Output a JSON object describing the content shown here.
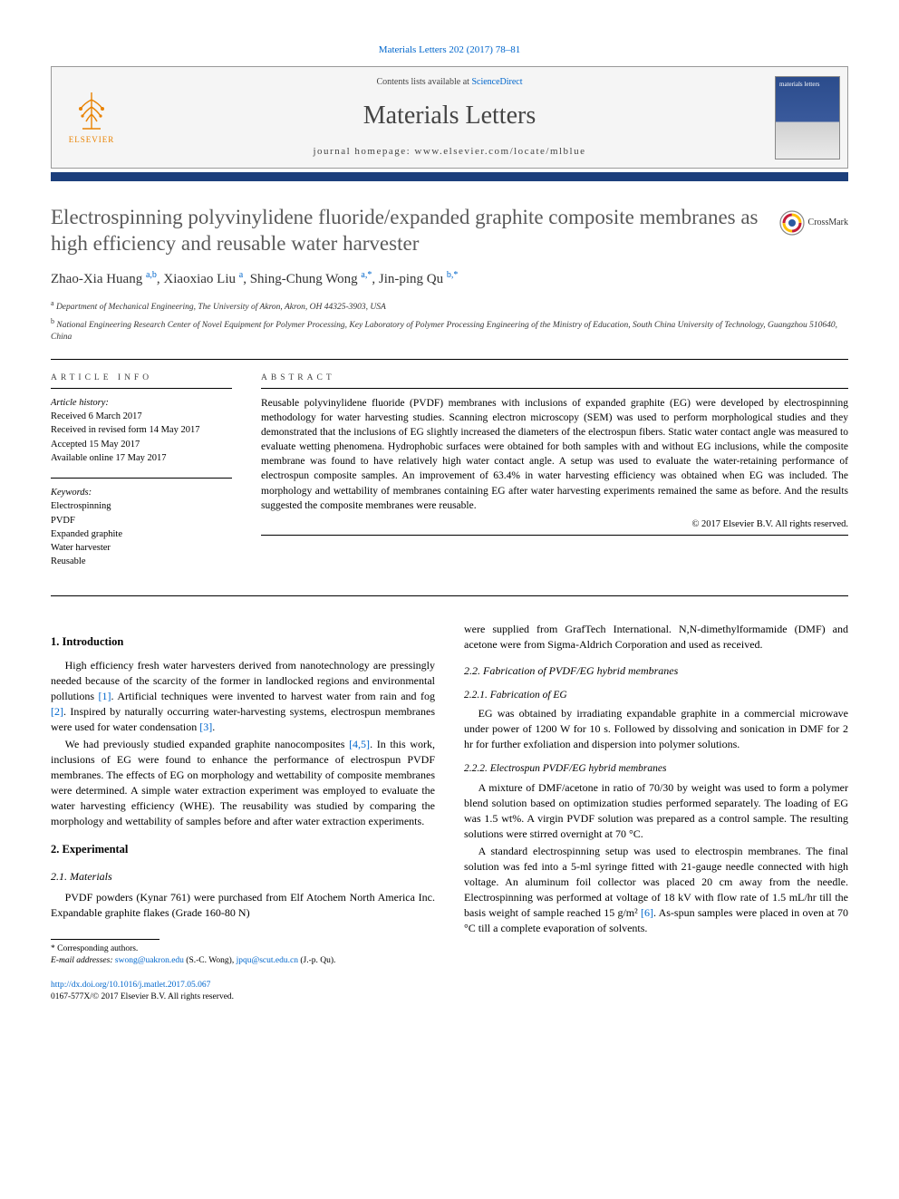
{
  "citation": "Materials Letters 202 (2017) 78–81",
  "header": {
    "contents_prefix": "Contents lists available at ",
    "contents_link": "ScienceDirect",
    "journal": "Materials Letters",
    "homepage_prefix": "journal homepage: ",
    "homepage_url": "www.elsevier.com/locate/mlblue",
    "publisher_label": "ELSEVIER"
  },
  "title": "Electrospinning polyvinylidene fluoride/expanded graphite composite membranes as high efficiency and reusable water harvester",
  "crossmark_label": "CrossMark",
  "authors_html": "Zhao-Xia Huang <span class='sup'>a,b</span>, Xiaoxiao Liu <span class='sup'>a</span>, Shing-Chung Wong <span class='sup'>a,*</span>, Jin-ping Qu <span class='sup'>b,*</span>",
  "affiliations": [
    {
      "sup": "a",
      "text": "Department of Mechanical Engineering, The University of Akron, Akron, OH 44325-3903, USA"
    },
    {
      "sup": "b",
      "text": "National Engineering Research Center of Novel Equipment for Polymer Processing, Key Laboratory of Polymer Processing Engineering of the Ministry of Education, South China University of Technology, Guangzhou 510640, China"
    }
  ],
  "article_info": {
    "label": "ARTICLE INFO",
    "history_label": "Article history:",
    "history": [
      "Received 6 March 2017",
      "Received in revised form 14 May 2017",
      "Accepted 15 May 2017",
      "Available online 17 May 2017"
    ],
    "keywords_label": "Keywords:",
    "keywords": [
      "Electrospinning",
      "PVDF",
      "Expanded graphite",
      "Water harvester",
      "Reusable"
    ]
  },
  "abstract": {
    "label": "ABSTRACT",
    "text": "Reusable polyvinylidene fluoride (PVDF) membranes with inclusions of expanded graphite (EG) were developed by electrospinning methodology for water harvesting studies. Scanning electron microscopy (SEM) was used to perform morphological studies and they demonstrated that the inclusions of EG slightly increased the diameters of the electrospun fibers. Static water contact angle was measured to evaluate wetting phenomena. Hydrophobic surfaces were obtained for both samples with and without EG inclusions, while the composite membrane was found to have relatively high water contact angle. A setup was used to evaluate the water-retaining performance of electrospun composite samples. An improvement of 63.4% in water harvesting efficiency was obtained when EG was included. The morphology and wettability of membranes containing EG after water harvesting experiments remained the same as before. And the results suggested the composite membranes were reusable.",
    "copyright": "© 2017 Elsevier B.V. All rights reserved."
  },
  "sections": {
    "intro_h": "1. Introduction",
    "intro_p1": "High efficiency fresh water harvesters derived from nanotechnology are pressingly needed because of the scarcity of the former in landlocked regions and environmental pollutions [1]. Artificial techniques were invented to harvest water from rain and fog [2]. Inspired by naturally occurring water-harvesting systems, electrospun membranes were used for water condensation [3].",
    "intro_p2": "We had previously studied expanded graphite nanocomposites [4,5]. In this work, inclusions of EG were found to enhance the performance of electrospun PVDF membranes. The effects of EG on morphology and wettability of composite membranes were determined. A simple water extraction experiment was employed to evaluate the water harvesting efficiency (WHE). The reusability was studied by comparing the morphology and wettability of samples before and after water extraction experiments.",
    "exp_h": "2. Experimental",
    "mat_h": "2.1. Materials",
    "mat_p": "PVDF powders (Kynar 761) were purchased from Elf Atochem North America Inc. Expandable graphite flakes (Grade 160-80 N)",
    "mat_p_cont": "were supplied from GrafTech International. N,N-dimethylformamide (DMF) and acetone were from Sigma-Aldrich Corporation and used as received.",
    "fab_h": "2.2. Fabrication of PVDF/EG hybrid membranes",
    "fabeg_h": "2.2.1. Fabrication of EG",
    "fabeg_p": "EG was obtained by irradiating expandable graphite in a commercial microwave under power of 1200 W for 10 s. Followed by dissolving and sonication in DMF for 2 hr for further exfoliation and dispersion into polymer solutions.",
    "espun_h": "2.2.2. Electrospun PVDF/EG hybrid membranes",
    "espun_p1": "A mixture of DMF/acetone in ratio of 70/30 by weight was used to form a polymer blend solution based on optimization studies performed separately. The loading of EG was 1.5 wt%. A virgin PVDF solution was prepared as a control sample. The resulting solutions were stirred overnight at 70 °C.",
    "espun_p2": "A standard electrospinning setup was used to electrospin membranes. The final solution was fed into a 5-ml syringe fitted with 21-gauge needle connected with high voltage. An aluminum foil collector was placed 20 cm away from the needle. Electrospinning was performed at voltage of 18 kV with flow rate of 1.5 mL/hr till the basis weight of sample reached 15 g/m² [6]. As-spun samples were placed in oven at 70 °C till a complete evaporation of solvents."
  },
  "footnotes": {
    "corr": "* Corresponding authors.",
    "email_label": "E-mail addresses: ",
    "email1": "swong@uakron.edu",
    "email1_who": " (S.-C. Wong), ",
    "email2": "jpqu@scut.edu.cn",
    "email2_who": " (J.-p. Qu)."
  },
  "doi": {
    "url": "http://dx.doi.org/10.1016/j.matlet.2017.05.067",
    "issn_line": "0167-577X/© 2017 Elsevier B.V. All rights reserved."
  }
}
